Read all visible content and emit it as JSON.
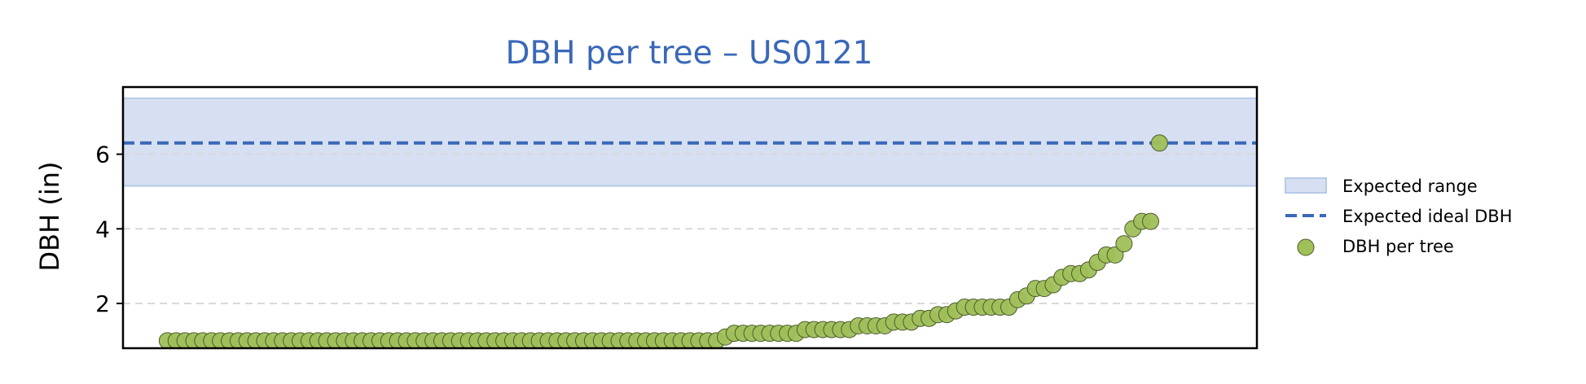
{
  "colors": {
    "title": "#3a68b8",
    "band_fill": "#d6e0f2",
    "band_edge": "#b7c9e8",
    "ideal_line": "#3a68b8",
    "point_fill": "#9fbf59",
    "point_edge": "#4a5a2a",
    "grid": "#d9d9d9"
  },
  "chart_data": {
    "type": "scatter",
    "title": "DBH per tree – US0121",
    "xlabel": "",
    "ylabel": "DBH (in)",
    "ylim": [
      0.8,
      7.8
    ],
    "yticks": [
      2,
      4,
      6
    ],
    "xlim": [
      -5,
      123
    ],
    "grid": "y-dashed",
    "expected_range": [
      5.15,
      7.5
    ],
    "expected_ideal": 6.3,
    "legend": {
      "placement": "outside-right",
      "entries": [
        "Expected range",
        "Expected ideal DBH",
        "DBH per tree"
      ]
    },
    "series": [
      {
        "name": "DBH per tree",
        "values": [
          1.0,
          1.0,
          1.0,
          1.0,
          1.0,
          1.0,
          1.0,
          1.0,
          1.0,
          1.0,
          1.0,
          1.0,
          1.0,
          1.0,
          1.0,
          1.0,
          1.0,
          1.0,
          1.0,
          1.0,
          1.0,
          1.0,
          1.0,
          1.0,
          1.0,
          1.0,
          1.0,
          1.0,
          1.0,
          1.0,
          1.0,
          1.0,
          1.0,
          1.0,
          1.0,
          1.0,
          1.0,
          1.0,
          1.0,
          1.0,
          1.0,
          1.0,
          1.0,
          1.0,
          1.0,
          1.0,
          1.0,
          1.0,
          1.0,
          1.0,
          1.0,
          1.0,
          1.0,
          1.0,
          1.0,
          1.0,
          1.0,
          1.0,
          1.0,
          1.0,
          1.0,
          1.0,
          1.0,
          1.1,
          1.2,
          1.2,
          1.2,
          1.2,
          1.2,
          1.2,
          1.2,
          1.2,
          1.3,
          1.3,
          1.3,
          1.3,
          1.3,
          1.3,
          1.4,
          1.4,
          1.4,
          1.4,
          1.5,
          1.5,
          1.5,
          1.6,
          1.6,
          1.7,
          1.7,
          1.8,
          1.9,
          1.9,
          1.9,
          1.9,
          1.9,
          1.9,
          2.1,
          2.2,
          2.4,
          2.4,
          2.5,
          2.7,
          2.8,
          2.8,
          2.9,
          3.1,
          3.3,
          3.3,
          3.6,
          4.0,
          4.2,
          4.2,
          6.3
        ]
      }
    ]
  }
}
